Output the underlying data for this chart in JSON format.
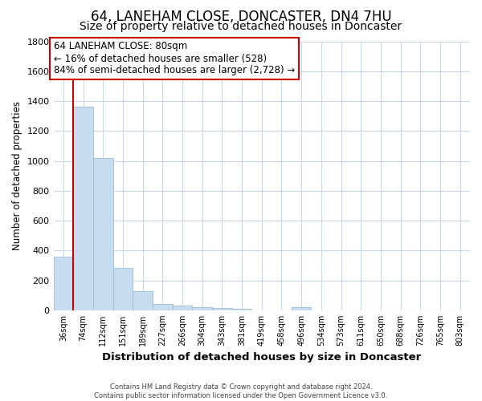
{
  "title": "64, LANEHAM CLOSE, DONCASTER, DN4 7HU",
  "subtitle": "Size of property relative to detached houses in Doncaster",
  "xlabel": "Distribution of detached houses by size in Doncaster",
  "ylabel": "Number of detached properties",
  "bin_labels": [
    "36sqm",
    "74sqm",
    "112sqm",
    "151sqm",
    "189sqm",
    "227sqm",
    "266sqm",
    "304sqm",
    "343sqm",
    "381sqm",
    "419sqm",
    "458sqm",
    "496sqm",
    "534sqm",
    "573sqm",
    "611sqm",
    "650sqm",
    "688sqm",
    "726sqm",
    "765sqm",
    "803sqm"
  ],
  "bar_heights": [
    360,
    1360,
    1020,
    285,
    130,
    43,
    30,
    18,
    15,
    10,
    0,
    0,
    18,
    0,
    0,
    0,
    0,
    0,
    0,
    0,
    0
  ],
  "bar_color": "#c6ddef",
  "bar_edge_color": "#9bbdd6",
  "marker_color": "#cc0000",
  "ylim": [
    0,
    1800
  ],
  "yticks": [
    0,
    200,
    400,
    600,
    800,
    1000,
    1200,
    1400,
    1600,
    1800
  ],
  "annotation_title": "64 LANEHAM CLOSE: 80sqm",
  "annotation_line1": "← 16% of detached houses are smaller (528)",
  "annotation_line2": "84% of semi-detached houses are larger (2,728) →",
  "footer_line1": "Contains HM Land Registry data © Crown copyright and database right 2024.",
  "footer_line2": "Contains public sector information licensed under the Open Government Licence v3.0.",
  "background_color": "#ffffff",
  "grid_color": "#c8d8e8",
  "title_fontsize": 12,
  "subtitle_fontsize": 10
}
